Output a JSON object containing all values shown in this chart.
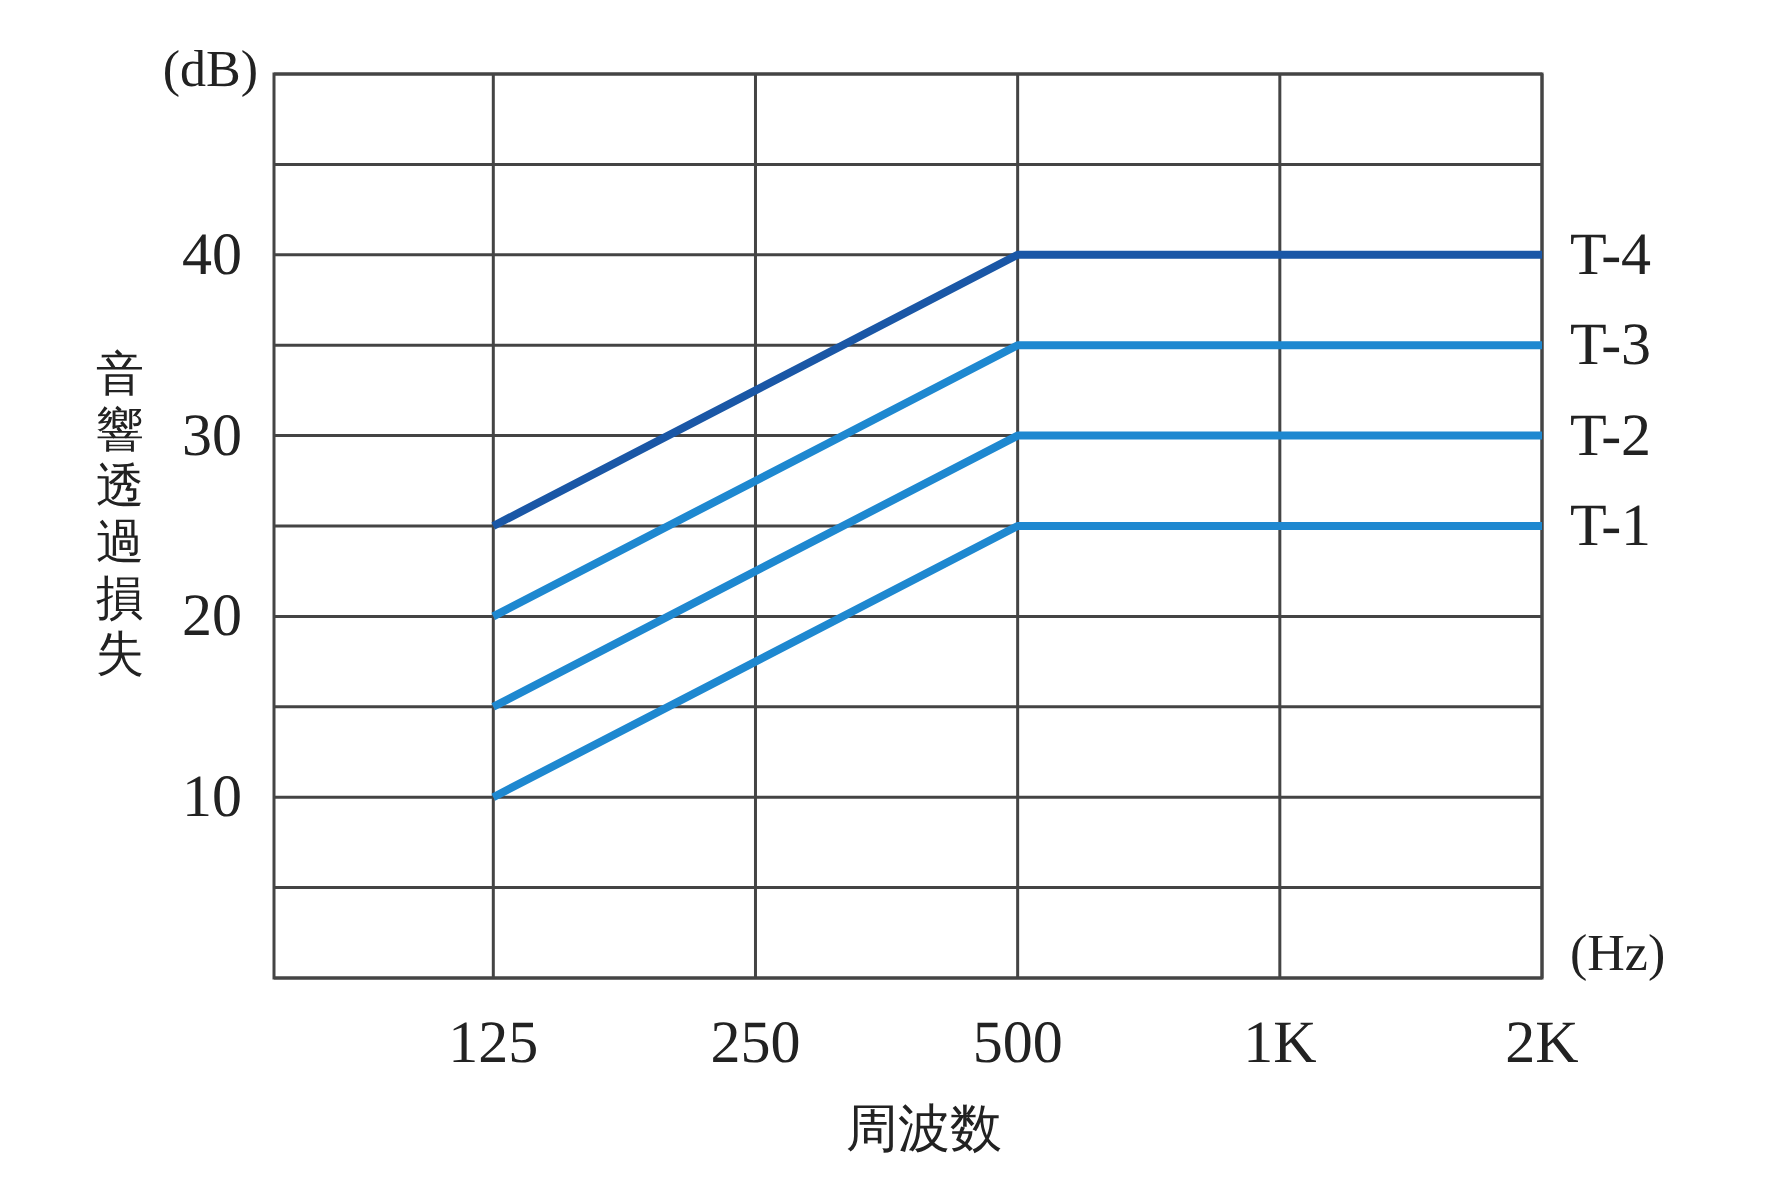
{
  "chart_data": {
    "type": "line",
    "ylabel": "音響透過損失",
    "xlabel": "周波数",
    "annotations": [
      "(dB)",
      "(Hz)"
    ],
    "log": "x",
    "xlim": [
      70,
      2000
    ],
    "xticks": [
      125,
      250,
      500,
      {
        "value": 1000,
        "label": "1K"
      },
      {
        "value": 2000,
        "label": "2K"
      }
    ],
    "ylim": [
      0,
      50
    ],
    "yticks": [
      {
        "value": 0,
        "label": null
      },
      {
        "value": 5,
        "label": null
      },
      10,
      {
        "value": 15,
        "label": null
      },
      20,
      {
        "value": 25,
        "label": null
      },
      30,
      {
        "value": 35,
        "label": null
      },
      40,
      {
        "value": 45,
        "label": null
      },
      {
        "value": 50,
        "label": null
      }
    ],
    "grid": true,
    "legend": false,
    "marker": "none",
    "line_style": "solid",
    "x": [
      125,
      500,
      2000
    ],
    "series": [
      {
        "name": "T-4",
        "color": "#1a57a6",
        "values": [
          25,
          40,
          40
        ]
      },
      {
        "name": "T-3",
        "color": "#1e88d0",
        "values": [
          20,
          35,
          35
        ]
      },
      {
        "name": "T-2",
        "color": "#1e88d0",
        "values": [
          15,
          30,
          30
        ]
      },
      {
        "name": "T-1",
        "color": "#1e88d0",
        "values": [
          10,
          25,
          25
        ]
      }
    ]
  }
}
